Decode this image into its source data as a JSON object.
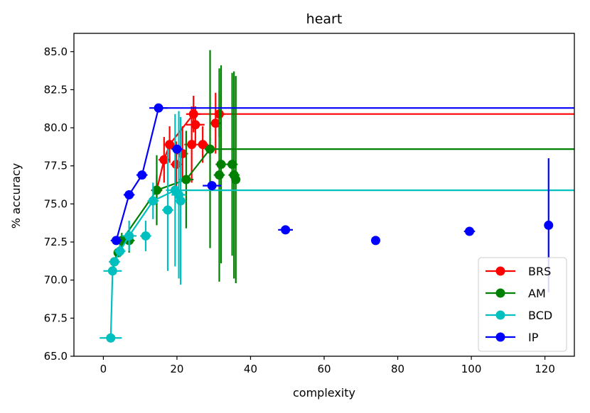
{
  "chart_data": {
    "type": "line",
    "title": "heart",
    "xlabel": "complexity",
    "ylabel": "% accuracy",
    "xlim": [
      -8,
      128
    ],
    "ylim": [
      65.0,
      86.2
    ],
    "xticks": [
      0,
      20,
      40,
      60,
      80,
      100,
      120
    ],
    "yticks": [
      65.0,
      67.5,
      70.0,
      72.5,
      75.0,
      77.5,
      80.0,
      82.5,
      85.0
    ],
    "xtick_labels": [
      "0",
      "20",
      "40",
      "60",
      "80",
      "100",
      "120"
    ],
    "ytick_labels": [
      "65.0",
      "67.5",
      "70.0",
      "72.5",
      "75.0",
      "77.5",
      "80.0",
      "82.5",
      "85.0"
    ],
    "legend_position": "lower-right",
    "series": [
      {
        "name": "BRS",
        "color": "#ff0000",
        "frontier": [
          [
            14.5,
            75.9
          ],
          [
            16.5,
            77.9
          ],
          [
            18.0,
            78.9
          ],
          [
            24.5,
            80.9
          ],
          [
            128,
            80.9
          ]
        ],
        "points": [
          {
            "x": 14.5,
            "y": 75.9,
            "xerr": 1.5,
            "yerr": 1.0
          },
          {
            "x": 16.5,
            "y": 77.9,
            "xerr": 1.5,
            "yerr": 1.5
          },
          {
            "x": 18.0,
            "y": 78.9,
            "xerr": 1.5,
            "yerr": 1.2
          },
          {
            "x": 19.8,
            "y": 77.6,
            "xerr": 1.5,
            "yerr": 1.5
          },
          {
            "x": 21.5,
            "y": 78.3,
            "xerr": 1.5,
            "yerr": 1.8
          },
          {
            "x": 24.0,
            "y": 78.9,
            "xerr": 2.0,
            "yerr": 2.5
          },
          {
            "x": 24.5,
            "y": 80.9,
            "xerr": 2.0,
            "yerr": 1.2
          },
          {
            "x": 25.0,
            "y": 80.2,
            "xerr": 2.5,
            "yerr": 1.2
          },
          {
            "x": 27.0,
            "y": 78.9,
            "xerr": 1.5,
            "yerr": 1.2
          },
          {
            "x": 30.5,
            "y": 80.3,
            "xerr": 1.5,
            "yerr": 2.0
          },
          {
            "x": 31.5,
            "y": 80.9,
            "xerr": 1.5,
            "yerr": 1.5
          }
        ]
      },
      {
        "name": "AM",
        "color": "#008000",
        "frontier": [
          [
            3.0,
            71.2
          ],
          [
            5.0,
            72.6
          ],
          [
            14.5,
            75.9
          ],
          [
            22.5,
            76.6
          ],
          [
            29.0,
            78.6
          ],
          [
            128,
            78.6
          ]
        ],
        "points": [
          {
            "x": 3.0,
            "y": 71.2,
            "xerr": 1.0,
            "yerr": 0.3
          },
          {
            "x": 4.0,
            "y": 71.8,
            "xerr": 1.0,
            "yerr": 0.3
          },
          {
            "x": 5.0,
            "y": 72.6,
            "xerr": 1.5,
            "yerr": 0.5
          },
          {
            "x": 7.0,
            "y": 72.6,
            "xerr": 1.5,
            "yerr": 0.8
          },
          {
            "x": 14.5,
            "y": 75.9,
            "xerr": 1.5,
            "yerr": 2.3
          },
          {
            "x": 22.5,
            "y": 76.6,
            "xerr": 2.0,
            "yerr": 3.2
          },
          {
            "x": 29.0,
            "y": 78.6,
            "xerr": 1.5,
            "yerr": 6.5
          },
          {
            "x": 31.5,
            "y": 76.9,
            "xerr": 1.5,
            "yerr": 7.0
          },
          {
            "x": 32.0,
            "y": 77.6,
            "xerr": 1.5,
            "yerr": 6.5
          },
          {
            "x": 35.0,
            "y": 77.6,
            "xerr": 1.5,
            "yerr": 6.0
          },
          {
            "x": 35.5,
            "y": 76.9,
            "xerr": 1.5,
            "yerr": 6.8
          },
          {
            "x": 36.0,
            "y": 76.6,
            "xerr": 1.0,
            "yerr": 6.8
          }
        ]
      },
      {
        "name": "BCD",
        "color": "#00bfbf",
        "frontier": [
          [
            2.0,
            66.2
          ],
          [
            2.5,
            70.6
          ],
          [
            3.0,
            71.2
          ],
          [
            4.5,
            71.9
          ],
          [
            7.0,
            72.9
          ],
          [
            13.5,
            75.2
          ],
          [
            19.5,
            75.9
          ],
          [
            128,
            75.9
          ]
        ],
        "points": [
          {
            "x": 2.0,
            "y": 66.2,
            "xerr": 3.0,
            "yerr": 0.0
          },
          {
            "x": 2.5,
            "y": 70.6,
            "xerr": 2.5,
            "yerr": 0.3
          },
          {
            "x": 3.0,
            "y": 71.2,
            "xerr": 1.5,
            "yerr": 0.3
          },
          {
            "x": 4.5,
            "y": 71.9,
            "xerr": 1.5,
            "yerr": 0.4
          },
          {
            "x": 7.0,
            "y": 72.9,
            "xerr": 2.0,
            "yerr": 1.0
          },
          {
            "x": 11.5,
            "y": 72.9,
            "xerr": 1.5,
            "yerr": 1.0
          },
          {
            "x": 13.5,
            "y": 75.2,
            "xerr": 1.5,
            "yerr": 1.2
          },
          {
            "x": 17.5,
            "y": 74.6,
            "xerr": 1.5,
            "yerr": 4.0
          },
          {
            "x": 19.5,
            "y": 75.9,
            "xerr": 2.5,
            "yerr": 5.0
          },
          {
            "x": 20.5,
            "y": 75.6,
            "xerr": 2.0,
            "yerr": 5.5
          },
          {
            "x": 21.0,
            "y": 75.2,
            "xerr": 1.5,
            "yerr": 5.5
          }
        ]
      },
      {
        "name": "IP",
        "color": "#0000ff",
        "frontier": [
          [
            3.5,
            72.6
          ],
          [
            7.0,
            75.6
          ],
          [
            10.5,
            76.9
          ],
          [
            15.0,
            81.3
          ],
          [
            128,
            81.3
          ]
        ],
        "points": [
          {
            "x": 3.5,
            "y": 72.6,
            "xerr": 1.5,
            "yerr": 0.0
          },
          {
            "x": 7.0,
            "y": 75.6,
            "xerr": 1.5,
            "yerr": 0.0
          },
          {
            "x": 10.5,
            "y": 76.9,
            "xerr": 1.5,
            "yerr": 0.0
          },
          {
            "x": 15.0,
            "y": 81.3,
            "xerr": 2.5,
            "yerr": 0.0
          },
          {
            "x": 20.0,
            "y": 78.6,
            "xerr": 1.5,
            "yerr": 0.0
          },
          {
            "x": 29.5,
            "y": 76.2,
            "xerr": 2.5,
            "yerr": 0.0
          },
          {
            "x": 49.5,
            "y": 73.3,
            "xerr": 2.0,
            "yerr": 0.0
          },
          {
            "x": 74.0,
            "y": 72.6,
            "xerr": 1.0,
            "yerr": 0.0
          },
          {
            "x": 99.5,
            "y": 73.2,
            "xerr": 1.5,
            "yerr": 0.0
          },
          {
            "x": 121.0,
            "y": 73.6,
            "xerr": 1.0,
            "yerr": 4.4
          }
        ]
      }
    ]
  }
}
